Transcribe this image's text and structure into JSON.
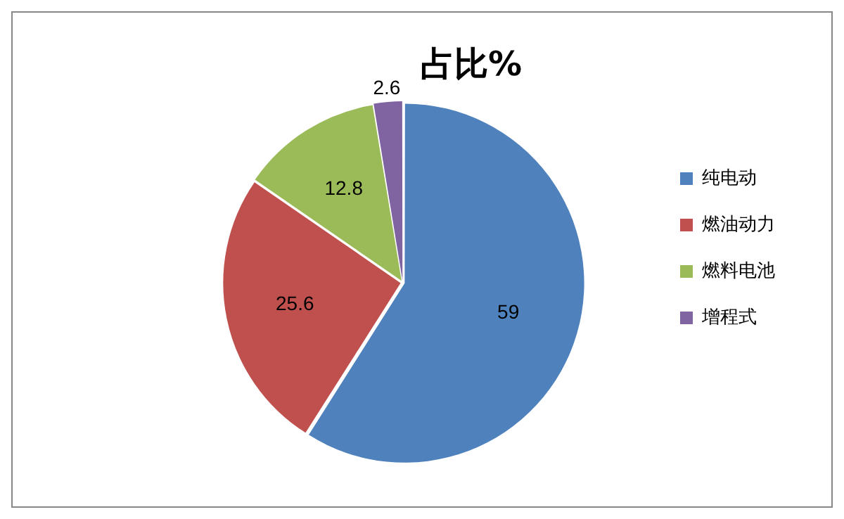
{
  "chart_data": {
    "type": "pie",
    "title": "占比%",
    "categories": [
      "纯电动",
      "燃油动力",
      "燃料电池",
      "增程式"
    ],
    "values": [
      59,
      25.6,
      12.8,
      2.6
    ],
    "colors": [
      "#4f81bd",
      "#c0504d",
      "#9bbb59",
      "#8064a2"
    ],
    "data_labels": true,
    "legend": "right"
  }
}
